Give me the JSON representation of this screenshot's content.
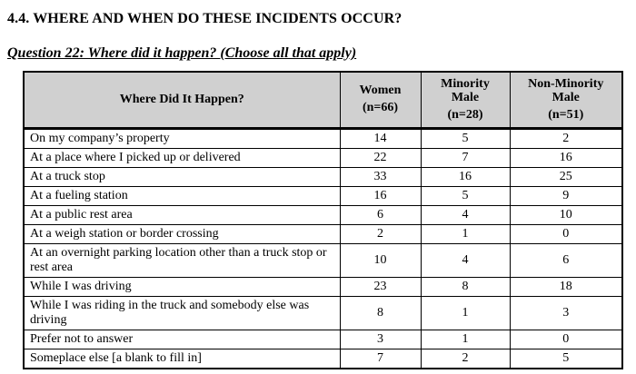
{
  "page": {
    "section_heading": "4.4. WHERE AND WHEN DO THESE INCIDENTS OCCUR?",
    "question_heading": "Question 22: Where did it happen? (Choose all that apply)"
  },
  "table": {
    "header": {
      "row_label": "Where Did It Happen?",
      "columns": [
        {
          "label": "Women",
          "n": "(n=66)"
        },
        {
          "label": "Minority Male",
          "n": "(n=28)"
        },
        {
          "label": "Non-Minority Male",
          "n": "(n=51)"
        }
      ]
    },
    "rows": [
      {
        "label": "On my company’s property",
        "values": [
          "14",
          "5",
          "2"
        ]
      },
      {
        "label": "At a place where I picked up or delivered",
        "values": [
          "22",
          "7",
          "16"
        ]
      },
      {
        "label": "At a truck stop",
        "values": [
          "33",
          "16",
          "25"
        ]
      },
      {
        "label": "At a fueling station",
        "values": [
          "16",
          "5",
          "9"
        ]
      },
      {
        "label": "At a public rest area",
        "values": [
          "6",
          "4",
          "10"
        ]
      },
      {
        "label": "At a weigh station or border crossing",
        "values": [
          "2",
          "1",
          "0"
        ]
      },
      {
        "label": "At an overnight parking location other than a truck stop or rest area",
        "values": [
          "10",
          "4",
          "6"
        ]
      },
      {
        "label": "While I was driving",
        "values": [
          "23",
          "8",
          "18"
        ]
      },
      {
        "label": "While I was riding in the truck and somebody else was driving",
        "values": [
          "8",
          "1",
          "3"
        ]
      },
      {
        "label": "Prefer not to answer",
        "values": [
          "3",
          "1",
          "0"
        ]
      },
      {
        "label": "Someplace else [a blank to fill in]",
        "values": [
          "7",
          "2",
          "5"
        ]
      }
    ]
  },
  "colors": {
    "header_background": "#d0d0d0",
    "border": "#000000",
    "text": "#000000",
    "page_background": "#ffffff"
  }
}
